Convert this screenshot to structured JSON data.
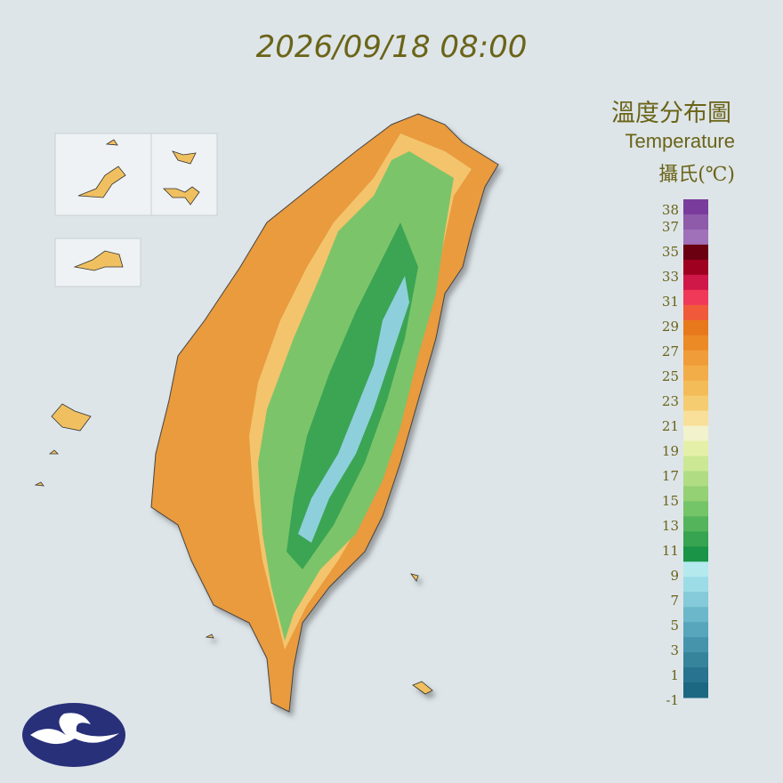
{
  "header": {
    "timestamp": "2026/09/18 08:00"
  },
  "legend": {
    "title": "溫度分布圖",
    "subtitle": "Temperature",
    "unit": "攝氏(℃)",
    "labels": [
      "38",
      "37",
      "35",
      "33",
      "31",
      "29",
      "27",
      "25",
      "23",
      "21",
      "19",
      "17",
      "15",
      "13",
      "11",
      "9",
      "7",
      "5",
      "3",
      "1",
      "-1"
    ],
    "colors": [
      "#7a3c9c",
      "#8e5aaa",
      "#a070b8",
      "#6a0010",
      "#a00020",
      "#d01848",
      "#f03858",
      "#f05a3a",
      "#e8781c",
      "#ec8a26",
      "#f09c38",
      "#f2ac48",
      "#f4bc58",
      "#f6cc70",
      "#f8e09a",
      "#f2f2cc",
      "#e4f0a8",
      "#cce894",
      "#b0dc84",
      "#94d074",
      "#74c468",
      "#54b45c",
      "#36a450",
      "#1a9446",
      "#b4eaee",
      "#9cdce6",
      "#84cad8",
      "#6cb8ca",
      "#58a6bc",
      "#4694ac",
      "#36849c",
      "#287490",
      "#1c6882"
    ]
  }
}
